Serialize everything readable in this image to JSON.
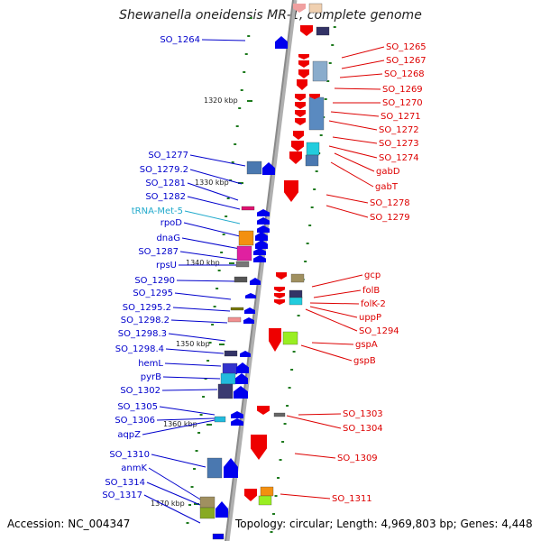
{
  "title": "Shewanella oneidensis MR-1, complete genome",
  "accession": "Accession: NC_004347",
  "summary": "Topology: circular; Length: 4,969,803 bp; Genes: 4,448",
  "colors": {
    "backbone": "#8a8a8a",
    "forward_label": "#0000cc",
    "reverse_label": "#dd0000",
    "rna_label": "#22aacc",
    "tick": "#1e7a1e"
  },
  "scale_ticks": [
    "1320 kbp",
    "1330 kbp",
    "1340 kbp",
    "1350 kbp",
    "1360 kbp",
    "1370 kbp"
  ],
  "forward_genes": [
    "SO_1264",
    "SO_1277",
    "SO_1279.2",
    "SO_1281",
    "SO_1282",
    "tRNA-Met-5",
    "rpoD",
    "dnaG",
    "SO_1287",
    "rpsU",
    "SO_1290",
    "SO_1295",
    "SO_1295.2",
    "SO_1298.2",
    "SO_1298.3",
    "SO_1298.4",
    "hemL",
    "pyrB",
    "SO_1302",
    "SO_1305",
    "SO_1306",
    "aqpZ",
    "SO_1310",
    "anmK",
    "SO_1314",
    "SO_1317"
  ],
  "reverse_genes": [
    "SO_1265",
    "SO_1267",
    "SO_1268",
    "SO_1269",
    "SO_1270",
    "SO_1271",
    "SO_1272",
    "SO_1273",
    "SO_1274",
    "gabD",
    "gabT",
    "SO_1278",
    "SO_1279",
    "gcp",
    "folB",
    "folK-2",
    "uppP",
    "SO_1294",
    "gspA",
    "gspB",
    "SO_1303",
    "SO_1304",
    "SO_1309",
    "SO_1311"
  ]
}
